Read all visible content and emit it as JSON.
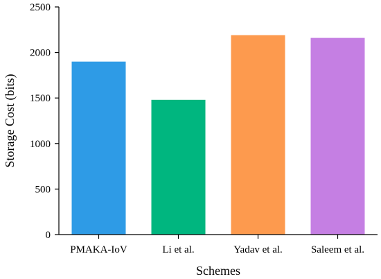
{
  "chart_data": {
    "type": "bar",
    "title": "",
    "xlabel": "Schemes",
    "ylabel": "Storage Cost (bits)",
    "categories": [
      "PMAKA-IoV",
      "Li et al.",
      "Yadav et al.",
      "Saleem et al."
    ],
    "values": [
      1900,
      1480,
      2190,
      2160
    ],
    "colors": [
      "#2E9BE6",
      "#00B67F",
      "#FD9A4E",
      "#C57FE3"
    ],
    "ylim": [
      0,
      2500
    ],
    "yticks": [
      0,
      500,
      1000,
      1500,
      2000,
      2500
    ],
    "grid": false,
    "legend": "none"
  }
}
